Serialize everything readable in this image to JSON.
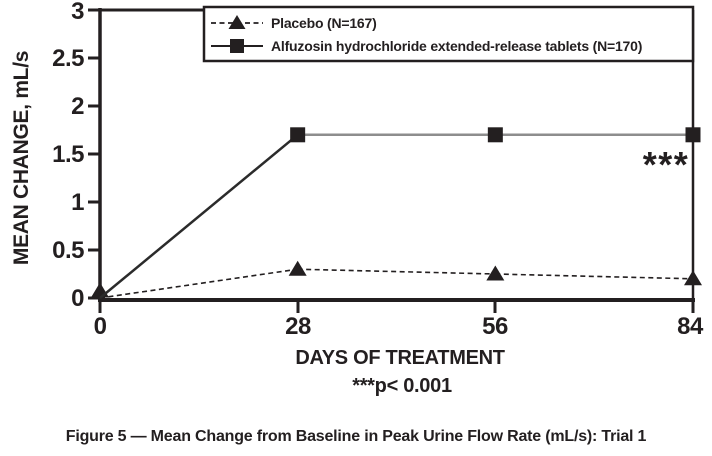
{
  "figure": {
    "caption": "Figure 5 — Mean Change from Baseline in Peak Urine Flow Rate (mL/s): Trial 1"
  },
  "colors": {
    "ink": "#231f20",
    "gray_line": "#8d8d8d",
    "background": "#ffffff"
  },
  "chart_data": {
    "type": "line",
    "title": "",
    "xlabel": "DAYS OF TREATMENT",
    "ylabel": "MEAN CHANGE, mL/s",
    "footnote": "***p< 0.001",
    "annotation": "***",
    "x": [
      0,
      28,
      56,
      84
    ],
    "x_ticks": [
      "0",
      "28",
      "56",
      "84"
    ],
    "y_ticks": [
      "0",
      "0.5",
      "1",
      "1.5",
      "2",
      "2.5",
      "3"
    ],
    "xlim": [
      0,
      84
    ],
    "ylim": [
      0,
      3
    ],
    "grid": false,
    "legend_position": "top-right-inside",
    "series": [
      {
        "name": "Placebo (N=167)",
        "marker": "triangle",
        "line_style": "dashed",
        "color": "#231f20",
        "values": [
          0,
          0.3,
          0.25,
          0.2
        ]
      },
      {
        "name": "Alfuzosin hydrochloride extended-release tablets (N=170)",
        "marker": "square",
        "line_style": "solid",
        "color": "#231f20",
        "segment_colors": [
          "#2b2b2b",
          "#8d8d8d",
          "#8d8d8d"
        ],
        "marker_on_first_point": false,
        "values": [
          0,
          1.7,
          1.7,
          1.7
        ]
      }
    ]
  }
}
